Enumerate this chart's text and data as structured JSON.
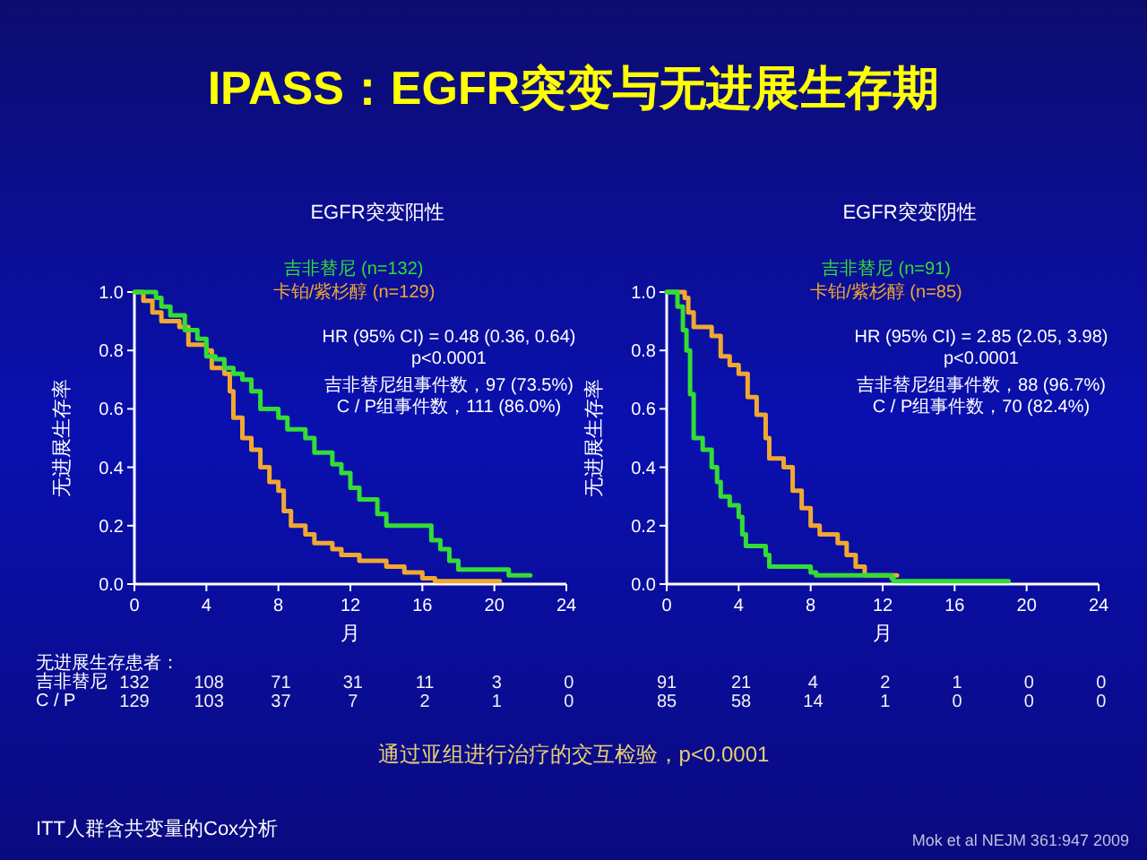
{
  "chart_data": [
    {
      "type": "other",
      "title": "IPASS：EGFR突变与无进展生存期",
      "annotations": [
        "通过亚组进行治疗的交互检验，p<0.0001",
        "ITT人群含共变量的Cox分析",
        "Mok et al NEJM 361:947 2009"
      ]
    },
    {
      "type": "step",
      "title": "EGFR突变阳性",
      "xlabel": "月",
      "ylabel": "无进展生存率",
      "legend": "top",
      "xlim": [
        0,
        24
      ],
      "ylim": [
        0,
        1
      ],
      "xticks": [
        0,
        4,
        8,
        12,
        16,
        20,
        24
      ],
      "yticks": [
        {
          "value": 0,
          "label": "0.0"
        },
        {
          "value": 0.2,
          "label": "0.2"
        },
        {
          "value": 0.4,
          "label": "0.4"
        },
        {
          "value": 0.6,
          "label": "0.6"
        },
        {
          "value": 0.8,
          "label": "0.8"
        },
        {
          "value": 1,
          "label": "1.0"
        }
      ],
      "series": [
        {
          "name": "卡铂/紫杉醇 (n=129)",
          "color": "#f0a830",
          "x": [
            0,
            0.5,
            1,
            1.5,
            2.5,
            3,
            4,
            4.3,
            5,
            5.3,
            5.5,
            6,
            6.5,
            7,
            7.5,
            8,
            8.3,
            8.7,
            9.5,
            10,
            11,
            11.5,
            12.5,
            14,
            15,
            16,
            16.7,
            20.3
          ],
          "values": [
            1,
            0.97,
            0.93,
            0.9,
            0.88,
            0.82,
            0.8,
            0.74,
            0.72,
            0.66,
            0.57,
            0.5,
            0.46,
            0.4,
            0.35,
            0.32,
            0.25,
            0.2,
            0.17,
            0.14,
            0.12,
            0.1,
            0.08,
            0.06,
            0.04,
            0.02,
            0.01,
            0.01
          ]
        },
        {
          "name": "吉非替尼 (n=132)",
          "color": "#33dd33",
          "x": [
            0,
            1.2,
            1.5,
            2,
            2.8,
            3.5,
            4,
            4.5,
            5,
            5.5,
            6,
            6.5,
            7,
            8,
            8.5,
            9.5,
            10,
            11,
            11.5,
            12,
            12.5,
            13.5,
            14,
            16.5,
            17,
            17.5,
            18,
            20.8,
            22
          ],
          "values": [
            1,
            0.98,
            0.95,
            0.92,
            0.87,
            0.84,
            0.78,
            0.77,
            0.74,
            0.72,
            0.7,
            0.66,
            0.6,
            0.57,
            0.53,
            0.5,
            0.45,
            0.41,
            0.38,
            0.33,
            0.29,
            0.24,
            0.2,
            0.15,
            0.12,
            0.08,
            0.05,
            0.03,
            0.03
          ]
        }
      ],
      "annotations": [
        "HR (95% CI) = 0.48 (0.36, 0.64)",
        "p<0.0001",
        "吉非替尼组事件数，97 (73.5%)",
        "C / P组事件数，111 (86.0%)",
        "无进展生存患者：",
        "吉非替尼",
        "C / P",
        "132 108 71 31 11 3 0",
        "129 103 37 7 2 1 0"
      ]
    },
    {
      "type": "step",
      "title": "EGFR突变阴性",
      "xlabel": "月",
      "ylabel": "无进展生存率",
      "legend": "top",
      "xlim": [
        0,
        24
      ],
      "ylim": [
        0,
        1
      ],
      "xticks": [
        0,
        4,
        8,
        12,
        16,
        20,
        24
      ],
      "yticks": [
        {
          "value": 0,
          "label": "0.0"
        },
        {
          "value": 0.2,
          "label": "0.2"
        },
        {
          "value": 0.4,
          "label": "0.4"
        },
        {
          "value": 0.6,
          "label": "0.6"
        },
        {
          "value": 0.8,
          "label": "0.8"
        },
        {
          "value": 1,
          "label": "1.0"
        }
      ],
      "series": [
        {
          "name": "卡铂/紫杉醇 (n=85)",
          "color": "#f0a830",
          "x": [
            0,
            1,
            1.2,
            1.5,
            2.5,
            3,
            3.5,
            4,
            4.5,
            5,
            5.5,
            5.7,
            6.5,
            7,
            7.5,
            8,
            8.5,
            9.5,
            10,
            10.5,
            11,
            12.8
          ],
          "values": [
            1,
            0.98,
            0.93,
            0.88,
            0.85,
            0.78,
            0.75,
            0.72,
            0.64,
            0.58,
            0.5,
            0.43,
            0.4,
            0.32,
            0.26,
            0.2,
            0.17,
            0.14,
            0.1,
            0.06,
            0.03,
            0.03
          ]
        },
        {
          "name": "吉非替尼 (n=91)",
          "color": "#33dd33",
          "x": [
            0,
            0.6,
            0.9,
            1.1,
            1.3,
            1.5,
            2,
            2.5,
            2.8,
            3,
            3.5,
            4,
            4.2,
            4.4,
            5.5,
            5.7,
            8,
            8.3,
            12.5,
            12.6,
            19
          ],
          "values": [
            1,
            0.95,
            0.87,
            0.8,
            0.65,
            0.5,
            0.46,
            0.4,
            0.35,
            0.3,
            0.27,
            0.23,
            0.17,
            0.13,
            0.1,
            0.06,
            0.04,
            0.03,
            0.02,
            0.01,
            0.01
          ]
        }
      ],
      "annotations": [
        "HR (95% CI) = 2.85 (2.05, 3.98)",
        "p<0.0001",
        "吉非替尼组事件数，88 (96.7%)",
        "C / P组事件数，70 (82.4%)",
        "91 21 4 2 1 0 0",
        "85 58 14 1 0 0 0"
      ]
    }
  ]
}
